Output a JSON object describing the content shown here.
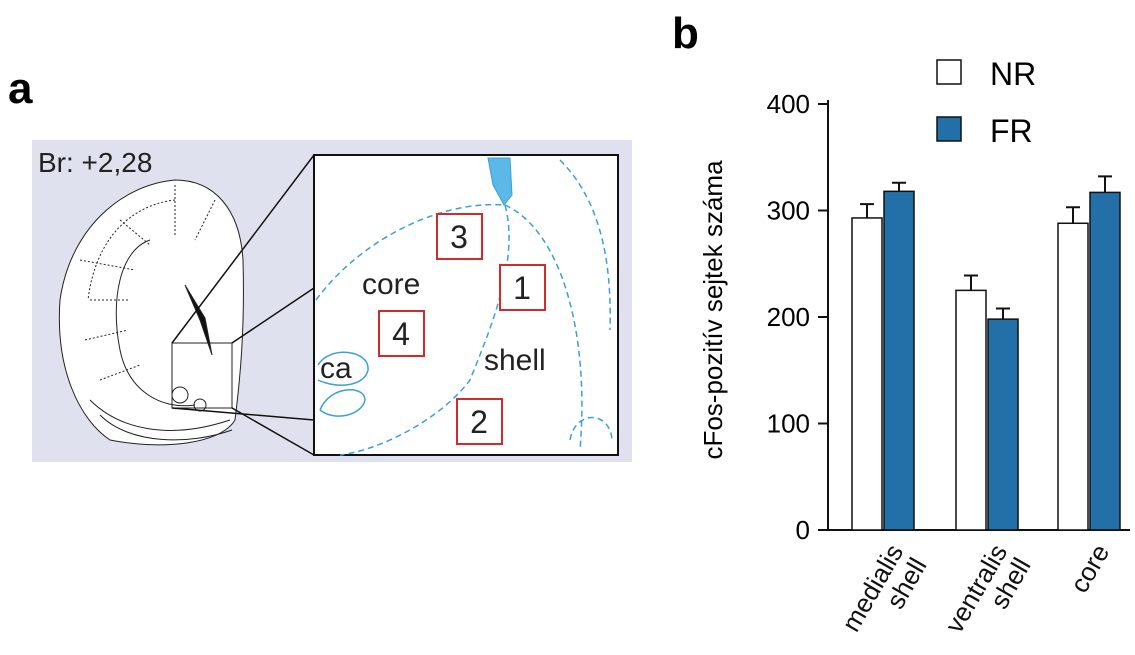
{
  "panel_a": {
    "label": "a",
    "bregma": "Br: +2,28",
    "region_labels": [
      "core",
      "shell",
      "ca"
    ],
    "box_labels": [
      "3",
      "1",
      "4",
      "2"
    ]
  },
  "chart_data": {
    "type": "bar",
    "panel_label": "b",
    "ylabel": "cFos-pozitív sejtek száma",
    "categories": [
      "medialis shell",
      "ventralis shell",
      "core"
    ],
    "series": [
      {
        "name": "NR",
        "color": "#ffffff",
        "values": [
          293,
          225,
          288
        ],
        "errors": [
          13,
          14,
          15
        ]
      },
      {
        "name": "FR",
        "color": "#2370a8",
        "values": [
          318,
          198,
          317
        ],
        "errors": [
          8,
          10,
          15
        ]
      }
    ],
    "ylim": [
      0,
      400
    ],
    "yticks": [
      0,
      100,
      200,
      300,
      400
    ]
  }
}
